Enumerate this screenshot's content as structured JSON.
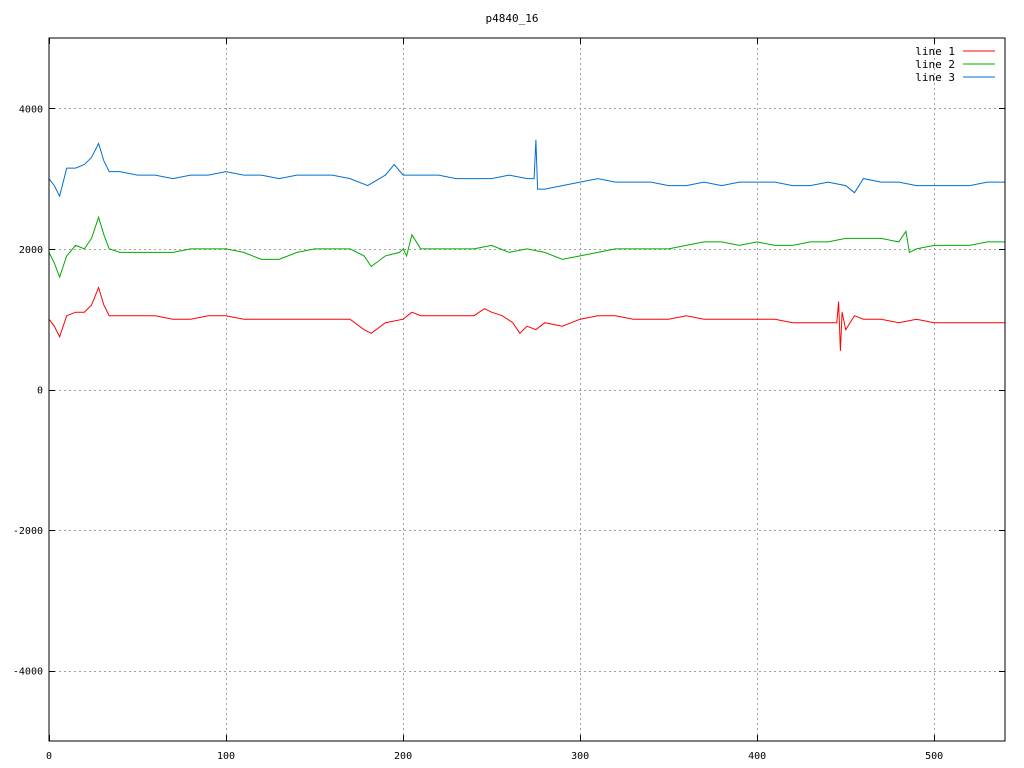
{
  "chart_data": {
    "type": "line",
    "title": "p4840_16",
    "xlabel": "",
    "ylabel": "",
    "xlim": [
      0,
      540
    ],
    "ylim": [
      -5000,
      5000
    ],
    "xticks": [
      0,
      100,
      200,
      300,
      400,
      500
    ],
    "yticks": [
      -4000,
      -2000,
      0,
      2000,
      4000
    ],
    "grid": true,
    "legend_position": "top-right",
    "series": [
      {
        "name": "line 1",
        "color": "#ff0000",
        "x": [
          0,
          3,
          6,
          10,
          15,
          20,
          24,
          28,
          31,
          34,
          40,
          50,
          60,
          70,
          80,
          90,
          100,
          110,
          120,
          130,
          140,
          150,
          160,
          170,
          178,
          182,
          190,
          200,
          205,
          210,
          220,
          230,
          240,
          246,
          250,
          256,
          262,
          266,
          270,
          275,
          280,
          290,
          300,
          310,
          320,
          330,
          340,
          350,
          360,
          370,
          380,
          390,
          400,
          410,
          420,
          430,
          440,
          445,
          446,
          447,
          448,
          450,
          455,
          460,
          470,
          480,
          490,
          500,
          510,
          520,
          530,
          540
        ],
        "y": [
          1000,
          900,
          750,
          1050,
          1100,
          1100,
          1200,
          1450,
          1200,
          1050,
          1050,
          1050,
          1050,
          1000,
          1000,
          1050,
          1050,
          1000,
          1000,
          1000,
          1000,
          1000,
          1000,
          1000,
          850,
          800,
          950,
          1000,
          1100,
          1050,
          1050,
          1050,
          1050,
          1150,
          1100,
          1050,
          950,
          800,
          900,
          850,
          950,
          900,
          1000,
          1050,
          1050,
          1000,
          1000,
          1000,
          1050,
          1000,
          1000,
          1000,
          1000,
          1000,
          950,
          950,
          950,
          950,
          1250,
          550,
          1100,
          850,
          1050,
          1000,
          1000,
          950,
          1000,
          950,
          950,
          950,
          950,
          950
        ]
      },
      {
        "name": "line 2",
        "color": "#00aa00",
        "x": [
          0,
          3,
          6,
          10,
          15,
          20,
          24,
          28,
          31,
          34,
          40,
          50,
          60,
          70,
          80,
          90,
          100,
          110,
          120,
          130,
          140,
          150,
          160,
          170,
          178,
          182,
          190,
          198,
          200,
          202,
          205,
          210,
          220,
          230,
          240,
          250,
          260,
          270,
          280,
          290,
          300,
          310,
          320,
          330,
          340,
          350,
          360,
          370,
          380,
          390,
          400,
          410,
          420,
          430,
          440,
          450,
          460,
          470,
          480,
          484,
          486,
          490,
          500,
          510,
          520,
          530,
          540
        ],
        "y": [
          1950,
          1800,
          1600,
          1900,
          2050,
          2000,
          2150,
          2450,
          2200,
          2000,
          1950,
          1950,
          1950,
          1950,
          2000,
          2000,
          2000,
          1950,
          1850,
          1850,
          1950,
          2000,
          2000,
          2000,
          1900,
          1750,
          1900,
          1950,
          2000,
          1900,
          2200,
          2000,
          2000,
          2000,
          2000,
          2050,
          1950,
          2000,
          1950,
          1850,
          1900,
          1950,
          2000,
          2000,
          2000,
          2000,
          2050,
          2100,
          2100,
          2050,
          2100,
          2050,
          2050,
          2100,
          2100,
          2150,
          2150,
          2150,
          2100,
          2250,
          1950,
          2000,
          2050,
          2050,
          2050,
          2100,
          2100
        ]
      },
      {
        "name": "line 3",
        "color": "#0070d0",
        "x": [
          0,
          3,
          6,
          10,
          15,
          20,
          24,
          28,
          31,
          34,
          40,
          50,
          60,
          70,
          80,
          90,
          100,
          110,
          120,
          130,
          140,
          150,
          160,
          170,
          180,
          190,
          195,
          200,
          210,
          220,
          230,
          240,
          250,
          260,
          270,
          274,
          275,
          276,
          280,
          290,
          300,
          310,
          320,
          330,
          340,
          350,
          360,
          370,
          380,
          390,
          400,
          410,
          420,
          430,
          440,
          450,
          455,
          460,
          470,
          480,
          490,
          500,
          510,
          520,
          530,
          540
        ],
        "y": [
          3000,
          2900,
          2750,
          3150,
          3150,
          3200,
          3300,
          3500,
          3250,
          3100,
          3100,
          3050,
          3050,
          3000,
          3050,
          3050,
          3100,
          3050,
          3050,
          3000,
          3050,
          3050,
          3050,
          3000,
          2900,
          3050,
          3200,
          3050,
          3050,
          3050,
          3000,
          3000,
          3000,
          3050,
          3000,
          3000,
          3550,
          2850,
          2850,
          2900,
          2950,
          3000,
          2950,
          2950,
          2950,
          2900,
          2900,
          2950,
          2900,
          2950,
          2950,
          2950,
          2900,
          2900,
          2950,
          2900,
          2800,
          3000,
          2950,
          2950,
          2900,
          2900,
          2900,
          2900,
          2950,
          2950
        ]
      }
    ]
  }
}
